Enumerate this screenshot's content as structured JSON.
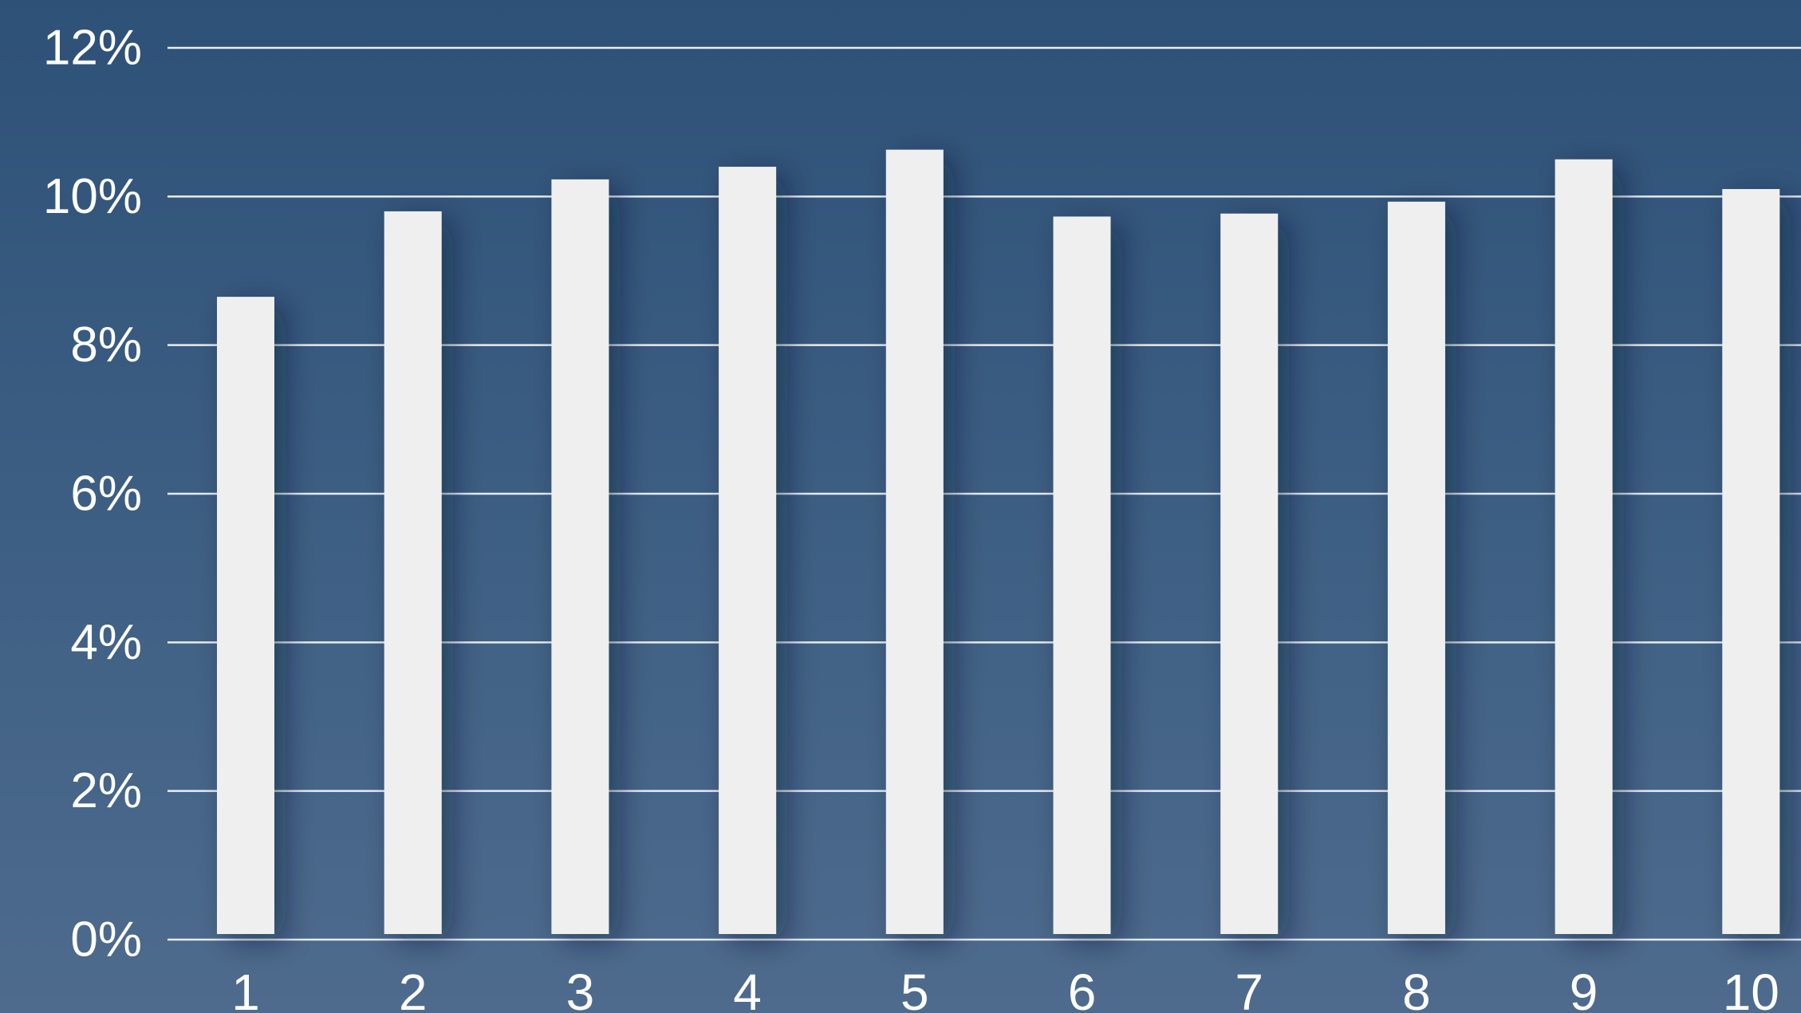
{
  "chart_data": {
    "type": "bar",
    "title": "",
    "xlabel": "",
    "ylabel": "",
    "categories": [
      "1",
      "2",
      "3",
      "4",
      "5",
      "6",
      "7",
      "8",
      "9",
      "10"
    ],
    "values": [
      8.65,
      9.8,
      10.23,
      10.4,
      10.63,
      9.73,
      9.77,
      9.93,
      10.5,
      10.1
    ],
    "ylim": [
      0,
      12
    ],
    "yticks": [
      0,
      2,
      4,
      6,
      8,
      10,
      12
    ],
    "ytick_labels": [
      "0%",
      "2%",
      "4%",
      "6%",
      "8%",
      "10%",
      "12%"
    ],
    "grid": true,
    "legend": "none",
    "colors": {
      "bar": "#efefef",
      "grid": "#e8edf3",
      "text": "#ffffff"
    }
  }
}
